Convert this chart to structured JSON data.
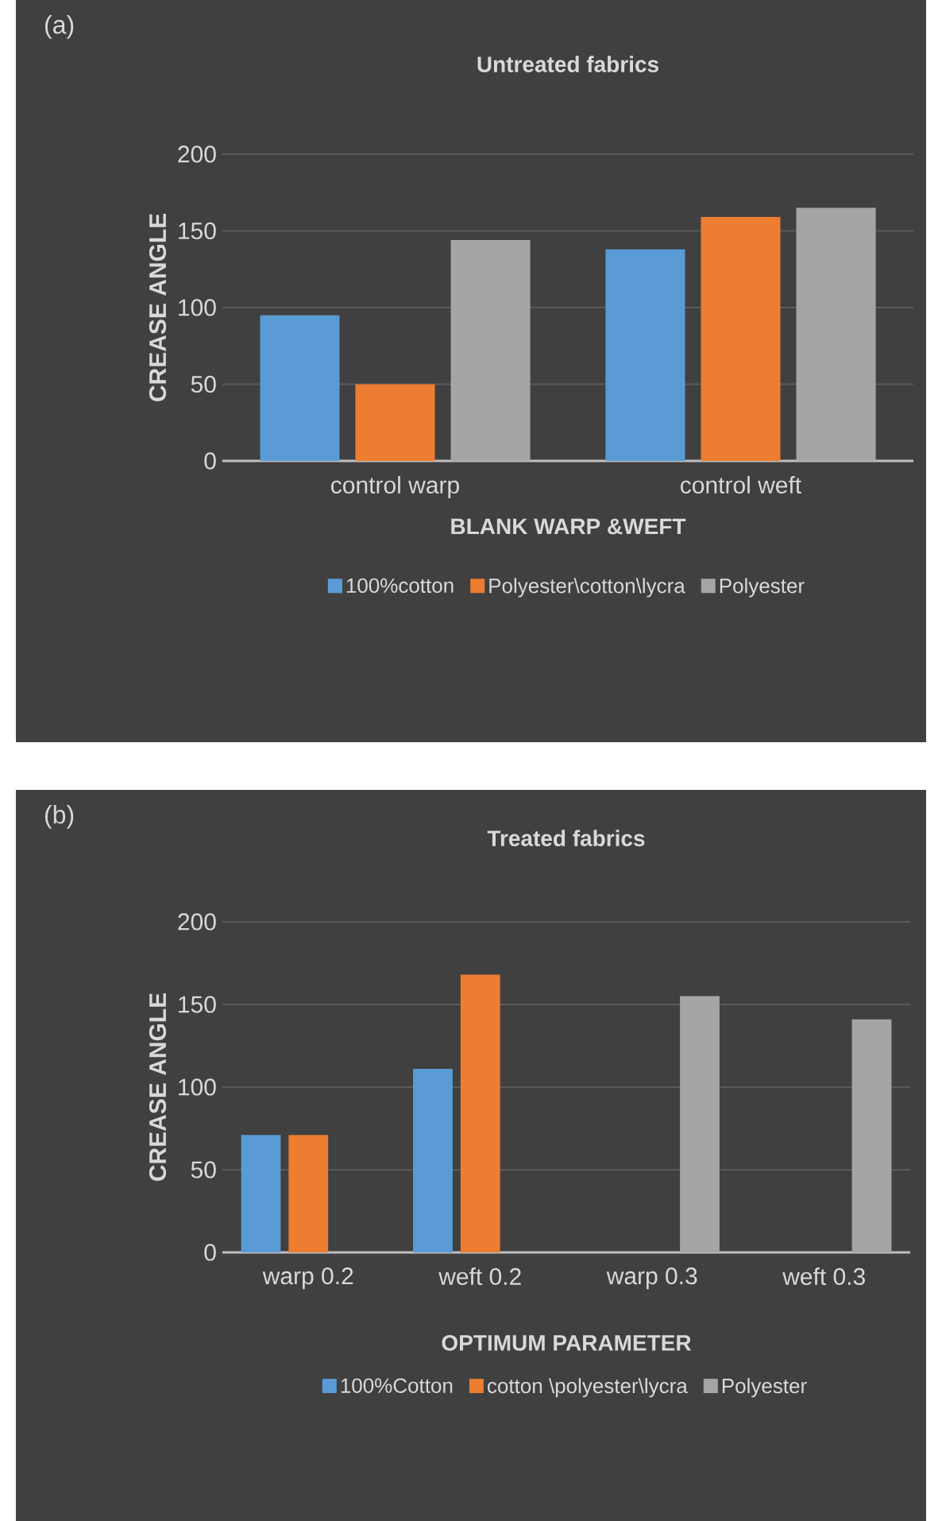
{
  "chart_data": [
    {
      "type": "bar",
      "title": "Untreated   fabrics",
      "annotations": [
        "(a)"
      ],
      "xlabel": "BLANK WARP &WEFT",
      "ylabel": "CREASE ANGLE",
      "categories": [
        "control warp",
        "control weft"
      ],
      "series": [
        {
          "name": "100%cotton",
          "color": "#5b9bd5",
          "values": [
            95,
            138
          ]
        },
        {
          "name": "Polyester\\cotton\\lycra",
          "color": "#ed7d31",
          "values": [
            50,
            159
          ]
        },
        {
          "name": "Polyester",
          "color": "#a5a5a5",
          "values": [
            144,
            165
          ]
        }
      ],
      "ylim": [
        0,
        200
      ],
      "yticks": [
        0,
        50,
        100,
        150,
        200
      ],
      "grid": "y",
      "legend": "bottom"
    },
    {
      "type": "bar",
      "title": "Treated fabrics",
      "annotations": [
        "(b)"
      ],
      "xlabel": "OPTIMUM PARAMETER",
      "ylabel": "CREASE ANGLE",
      "categories": [
        "warp 0.2",
        "weft 0.2",
        "warp 0.3",
        "weft 0.3"
      ],
      "series": [
        {
          "name": "100%Cotton",
          "color": "#5b9bd5",
          "values": [
            71,
            111,
            null,
            null
          ]
        },
        {
          "name": "cotton \\polyester\\lycra",
          "color": "#ed7d31",
          "values": [
            71,
            168,
            null,
            null
          ]
        },
        {
          "name": "Polyester",
          "color": "#a5a5a5",
          "values": [
            null,
            null,
            155,
            141
          ]
        }
      ],
      "ylim": [
        0,
        200
      ],
      "yticks": [
        0,
        50,
        100,
        150,
        200
      ],
      "grid": "y",
      "legend": "bottom"
    }
  ]
}
